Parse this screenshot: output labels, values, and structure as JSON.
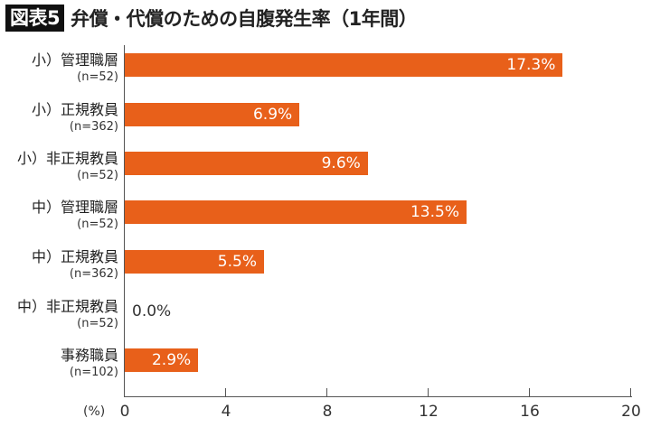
{
  "header": {
    "figure_tag": "図表5",
    "title": "弁償・代償のための自腹発生率（1年間）"
  },
  "axis": {
    "unit_label": "(%)",
    "ticks": [
      "0",
      "4",
      "8",
      "12",
      "16",
      "20"
    ]
  },
  "bar_color": "#e8601a",
  "rows": [
    {
      "label": "小）管理職層",
      "n": "(n=52)",
      "value_label": "17.3%"
    },
    {
      "label": "小）正規教員",
      "n": "(n=362)",
      "value_label": "6.9%"
    },
    {
      "label": "小）非正規教員",
      "n": "(n=52)",
      "value_label": "9.6%"
    },
    {
      "label": "中）管理職層",
      "n": "(n=52)",
      "value_label": "13.5%"
    },
    {
      "label": "中）正規教員",
      "n": "(n=362)",
      "value_label": "5.5%"
    },
    {
      "label": "中）非正規教員",
      "n": "(n=52)",
      "value_label": "0.0%"
    },
    {
      "label": "事務職員",
      "n": "(n=102)",
      "value_label": "2.9%"
    }
  ],
  "chart_data": {
    "type": "bar",
    "orientation": "horizontal",
    "title": "弁償・代償のための自腹発生率（1年間）",
    "categories": [
      "小）管理職層 (n=52)",
      "小）正規教員 (n=362)",
      "小）非正規教員 (n=52)",
      "中）管理職層 (n=52)",
      "中）正規教員 (n=362)",
      "中）非正規教員 (n=52)",
      "事務職員 (n=102)"
    ],
    "values": [
      17.3,
      6.9,
      9.6,
      13.5,
      5.5,
      0.0,
      2.9
    ],
    "xlabel": "(%)",
    "ylabel": "",
    "xlim": [
      0,
      20
    ],
    "xticks": [
      0,
      4,
      8,
      12,
      16,
      20
    ],
    "grid": false,
    "legend": null,
    "data_labels": true
  }
}
